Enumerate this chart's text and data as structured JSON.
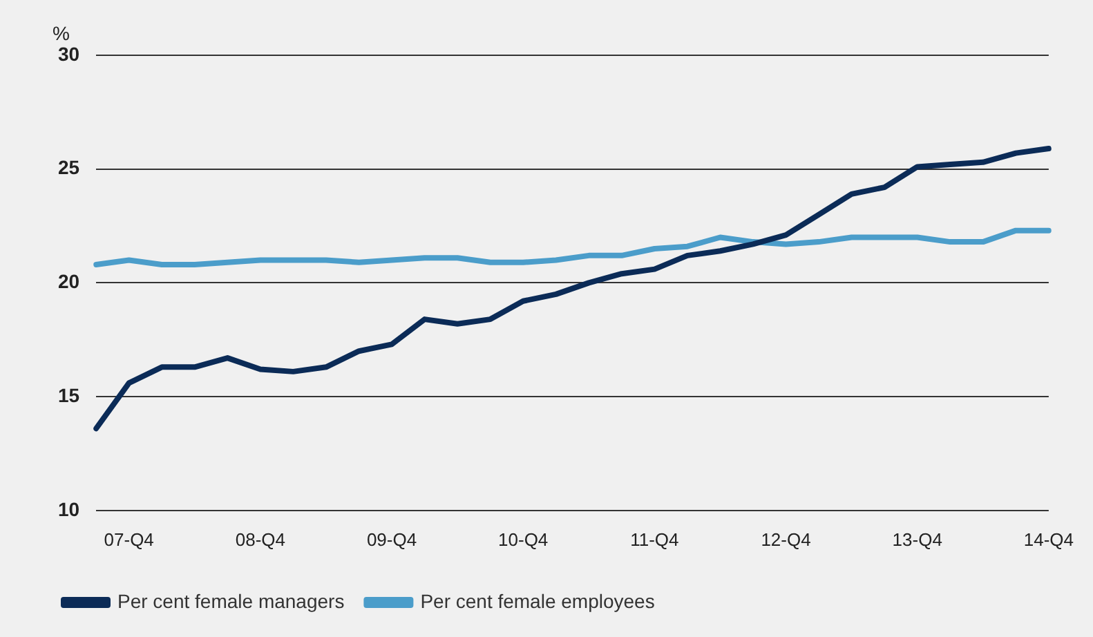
{
  "chart_data": {
    "type": "line",
    "ylabel": "%",
    "categories": [
      null,
      "07-Q4",
      null,
      null,
      null,
      "08-Q4",
      null,
      null,
      null,
      "09-Q4",
      null,
      null,
      null,
      "10-Q4",
      null,
      null,
      null,
      "11-Q4",
      null,
      null,
      null,
      "12-Q4",
      null,
      null,
      null,
      "13-Q4",
      null,
      null,
      null,
      "14-Q4"
    ],
    "series": [
      {
        "name": "Per cent female managers",
        "color": "#0b2b57",
        "values": [
          13.6,
          15.6,
          16.3,
          16.3,
          16.7,
          16.2,
          16.1,
          16.3,
          17.0,
          17.3,
          18.4,
          18.2,
          18.4,
          19.2,
          19.5,
          20.0,
          20.4,
          20.6,
          21.2,
          21.4,
          21.7,
          22.1,
          23.0,
          23.9,
          24.2,
          25.1,
          25.2,
          25.3,
          25.7,
          25.9
        ]
      },
      {
        "name": "Per cent female employees",
        "color": "#4b9dca",
        "values": [
          20.8,
          21.0,
          20.8,
          20.8,
          20.9,
          21.0,
          21.0,
          21.0,
          20.9,
          21.0,
          21.1,
          21.1,
          20.9,
          20.9,
          21.0,
          21.2,
          21.2,
          21.5,
          21.6,
          22.0,
          21.8,
          21.7,
          21.8,
          22.0,
          22.0,
          22.0,
          21.8,
          21.8,
          22.3,
          22.3
        ]
      }
    ],
    "ylim": [
      10,
      30
    ],
    "yticks": [
      10,
      15,
      20,
      25,
      30
    ],
    "grid": "y",
    "legend": "bottom left",
    "marker": "none",
    "line_style": "solid"
  }
}
